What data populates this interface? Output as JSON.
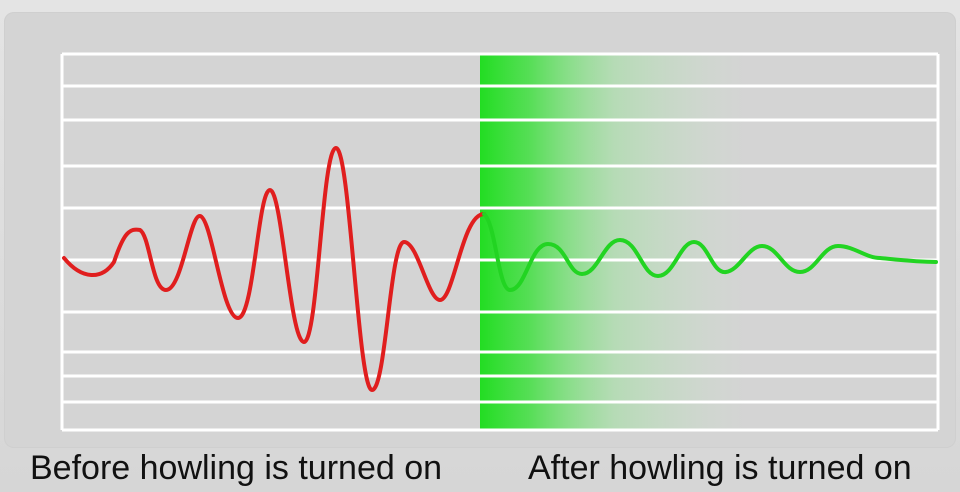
{
  "captions": {
    "before": "Before howling is turned on",
    "after": "After howling is turned on"
  },
  "colors": {
    "before_wave": "#e01e1e",
    "after_wave": "#22d422",
    "highlight": "#22dd22",
    "gridline": "#ffffff"
  }
}
